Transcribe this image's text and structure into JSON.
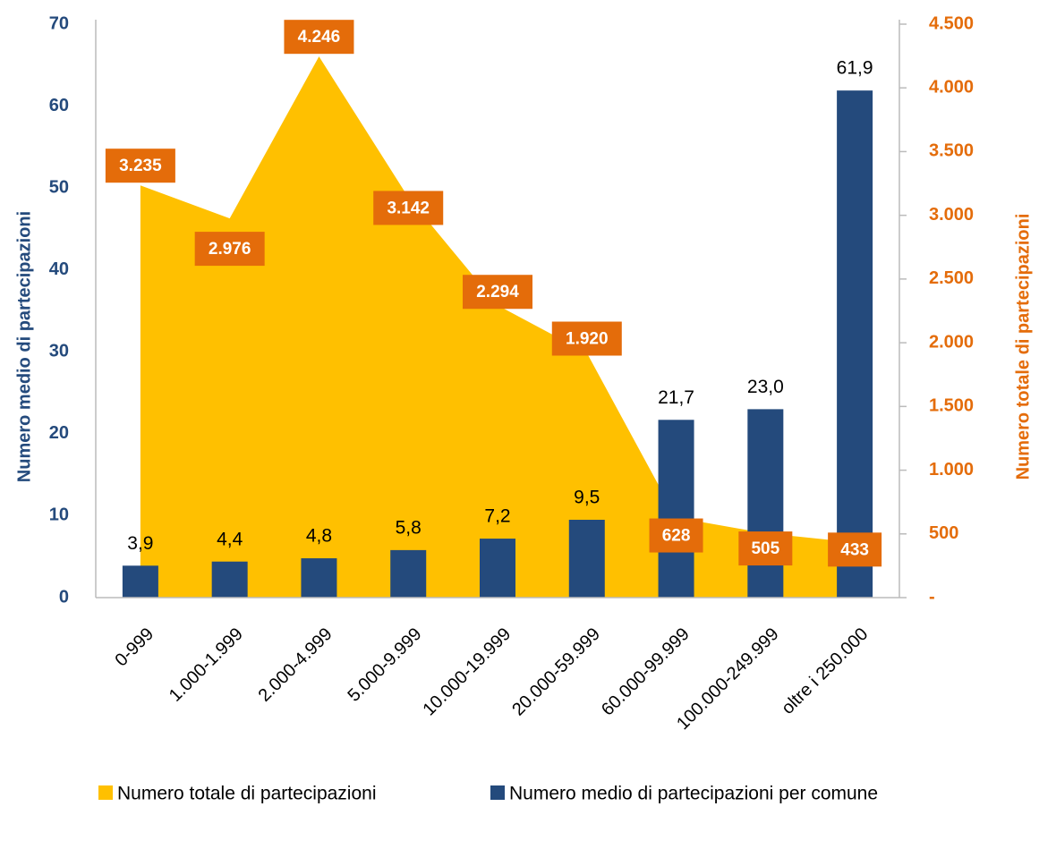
{
  "chart_data": {
    "type": "bar",
    "y_label": "Numero medio di partecipazioni",
    "y2_label": "Numero totale di partecipazioni",
    "categories": [
      "0-999",
      "1.000-1.999",
      "2.000-4.999",
      "5.000-9.999",
      "10.000-19.999",
      "20.000-59.999",
      "60.000-99.999",
      "100.000-249.999",
      "oltre i 250.000"
    ],
    "series": [
      {
        "name": "Numero totale di partecipazioni",
        "type": "area",
        "axis": "y2",
        "color": "#ffc000",
        "label_color": "#e46c0a",
        "values": [
          3235,
          2976,
          4246,
          3142,
          2294,
          1920,
          628,
          505,
          433
        ],
        "value_labels": [
          "3.235",
          "2.976",
          "4.246",
          "3.142",
          "2.294",
          "1.920",
          "628",
          "505",
          "433"
        ]
      },
      {
        "name": "Numero medio di partecipazioni per comune",
        "type": "bar",
        "axis": "y",
        "color": "#244a7c",
        "values": [
          3.9,
          4.4,
          4.8,
          5.8,
          7.2,
          9.5,
          21.7,
          23.0,
          61.9
        ],
        "value_labels": [
          "3,9",
          "4,4",
          "4,8",
          "5,8",
          "7,2",
          "9,5",
          "21,7",
          "23,0",
          "61,9"
        ]
      }
    ],
    "ylim": [
      0,
      70
    ],
    "yticks": [
      0,
      10,
      20,
      30,
      40,
      50,
      60,
      70
    ],
    "y2lim": [
      0,
      4500
    ],
    "y2ticks": [
      {
        "value": 0,
        "label": "-"
      },
      500,
      {
        "value": 1000,
        "label": "1.000"
      },
      {
        "value": 1500,
        "label": "1.500"
      },
      {
        "value": 2000,
        "label": "2.000"
      },
      {
        "value": 2500,
        "label": "2.500"
      },
      {
        "value": 3000,
        "label": "3.000"
      },
      {
        "value": 3500,
        "label": "3.500"
      },
      {
        "value": 4000,
        "label": "4.000"
      },
      {
        "value": 4500,
        "label": "4.500"
      }
    ],
    "y_color": "#244a7c",
    "y2_color": "#e46c0a"
  }
}
